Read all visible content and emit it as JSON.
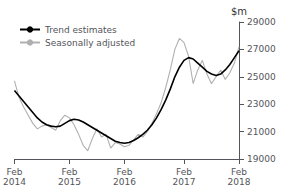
{
  "chart_data": {
    "type": "line",
    "categories": [
      "Feb\n2014",
      null,
      null,
      null,
      null,
      null,
      null,
      null,
      null,
      null,
      null,
      null,
      "Feb\n2015",
      null,
      null,
      null,
      null,
      null,
      null,
      null,
      null,
      null,
      null,
      null,
      "Feb\n2016",
      null,
      null,
      null,
      null,
      null,
      null,
      null,
      null,
      null,
      null,
      null,
      null,
      "Feb\n2017",
      null,
      null,
      null,
      null,
      null,
      null,
      null,
      null,
      null,
      null,
      null,
      "Feb\n2018"
    ],
    "series": [
      {
        "name": "Seasonally adjusted",
        "color": "#b0b0b0",
        "values": [
          24700,
          23500,
          22800,
          22200,
          21600,
          21200,
          21400,
          21500,
          21300,
          21100,
          21800,
          22200,
          22000,
          21500,
          20800,
          20000,
          19600,
          20500,
          21200,
          20600,
          20800,
          19800,
          20200,
          20100,
          19900,
          20000,
          20400,
          20800,
          20600,
          21000,
          21600,
          22300,
          23100,
          24200,
          25500,
          27000,
          27800,
          27500,
          26500,
          24500,
          25500,
          26200,
          25200,
          24500,
          25000,
          25500,
          24800,
          25300,
          26000,
          27200
        ]
      },
      {
        "name": "Trend estimates",
        "color": "#000000",
        "values": [
          24000,
          23600,
          23200,
          22800,
          22400,
          22000,
          21700,
          21500,
          21400,
          21350,
          21400,
          21600,
          21800,
          21900,
          21850,
          21700,
          21500,
          21300,
          21100,
          20900,
          20700,
          20500,
          20300,
          20200,
          20150,
          20200,
          20350,
          20550,
          20800,
          21100,
          21500,
          22000,
          22600,
          23300,
          24100,
          25000,
          25700,
          26200,
          26400,
          26300,
          26000,
          25700,
          25400,
          25200,
          25100,
          25200,
          25500,
          25900,
          26400,
          26900
        ]
      }
    ],
    "ylabel": "$m",
    "ylim": [
      19000,
      29000
    ],
    "yticks": [
      19000,
      21000,
      23000,
      25000,
      27000,
      29000
    ],
    "grid": false,
    "legend": "upper left"
  }
}
